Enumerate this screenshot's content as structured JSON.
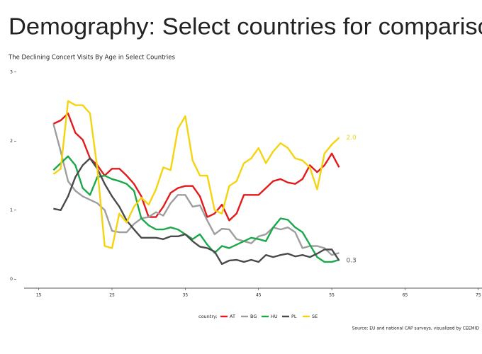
{
  "page_title": "Demography: Select countries for comparison",
  "chart_data": {
    "type": "line",
    "title": "The Declining Concert Visits By Age in Select Countries",
    "x": [
      17,
      18,
      19,
      20,
      21,
      22,
      23,
      24,
      25,
      26,
      27,
      28,
      29,
      30,
      31,
      32,
      33,
      34,
      35,
      36,
      37,
      38,
      39,
      40,
      41,
      42,
      43,
      44,
      45,
      46,
      47,
      48,
      49,
      50,
      51,
      52,
      53,
      54,
      55,
      56
    ],
    "series": [
      {
        "name": "AT",
        "color": "#e31a1c",
        "values": [
          2.25,
          2.3,
          2.4,
          2.12,
          2.02,
          1.75,
          1.65,
          1.5,
          1.6,
          1.6,
          1.5,
          1.38,
          1.2,
          0.9,
          0.9,
          1.05,
          1.25,
          1.32,
          1.35,
          1.35,
          1.2,
          0.9,
          0.95,
          1.08,
          0.85,
          0.95,
          1.22,
          1.22,
          1.22,
          1.32,
          1.42,
          1.45,
          1.4,
          1.38,
          1.45,
          1.65,
          1.55,
          1.65,
          1.82,
          1.62
        ]
      },
      {
        "name": "BG",
        "color": "#9e9e9e",
        "values": [
          2.25,
          1.85,
          1.42,
          1.28,
          1.2,
          1.15,
          1.1,
          1.0,
          0.7,
          0.68,
          0.68,
          0.8,
          0.88,
          0.9,
          0.97,
          0.92,
          1.1,
          1.22,
          1.22,
          1.05,
          1.07,
          0.85,
          0.65,
          0.73,
          0.72,
          0.58,
          0.55,
          0.52,
          0.62,
          0.65,
          0.75,
          0.72,
          0.75,
          0.68,
          0.45,
          0.48,
          0.48,
          0.45,
          0.35,
          0.38
        ]
      },
      {
        "name": "HU",
        "color": "#1aa84a",
        "values": [
          1.58,
          1.68,
          1.78,
          1.65,
          1.32,
          1.22,
          1.48,
          1.5,
          1.45,
          1.42,
          1.38,
          1.28,
          0.88,
          0.78,
          0.72,
          0.72,
          0.75,
          0.72,
          0.65,
          0.58,
          0.65,
          0.5,
          0.38,
          0.48,
          0.45,
          0.5,
          0.55,
          0.6,
          0.58,
          0.55,
          0.75,
          0.88,
          0.86,
          0.75,
          0.68,
          0.5,
          0.32,
          0.25,
          0.25,
          0.28
        ]
      },
      {
        "name": "PL",
        "color": "#4a4a4a",
        "values": [
          1.02,
          1.0,
          1.2,
          1.48,
          1.65,
          1.75,
          1.6,
          1.38,
          1.2,
          1.05,
          0.85,
          0.72,
          0.6,
          0.6,
          0.6,
          0.58,
          0.62,
          0.62,
          0.65,
          0.55,
          0.47,
          0.45,
          0.4,
          0.22,
          0.27,
          0.28,
          0.25,
          0.28,
          0.25,
          0.35,
          0.32,
          0.35,
          0.37,
          0.33,
          0.35,
          0.32,
          0.37,
          0.43,
          0.43,
          0.27
        ]
      },
      {
        "name": "SE",
        "color": "#f5d40f",
        "values": [
          1.52,
          1.6,
          2.58,
          2.52,
          2.52,
          2.4,
          1.6,
          0.48,
          0.45,
          0.95,
          0.82,
          1.05,
          1.18,
          1.08,
          1.3,
          1.62,
          1.58,
          2.18,
          2.36,
          1.72,
          1.5,
          1.5,
          1.0,
          0.95,
          1.35,
          1.42,
          1.68,
          1.75,
          1.9,
          1.68,
          1.85,
          1.97,
          1.9,
          1.75,
          1.72,
          1.62,
          1.3,
          1.82,
          1.95,
          2.05
        ]
      }
    ],
    "annotations": [
      "2.0",
      "0.3"
    ],
    "xlim": [
      13,
      75.5
    ],
    "ylim": [
      -0.13,
      3.1
    ],
    "xticks": [
      15,
      25,
      35,
      45,
      55,
      65,
      75
    ],
    "yticks": [
      0,
      1,
      2,
      3
    ],
    "grid": false,
    "legend_title": "country:",
    "legend_position": "bottom",
    "source": "Source: EU and national CAP surveys, visualized by CEEMID"
  }
}
